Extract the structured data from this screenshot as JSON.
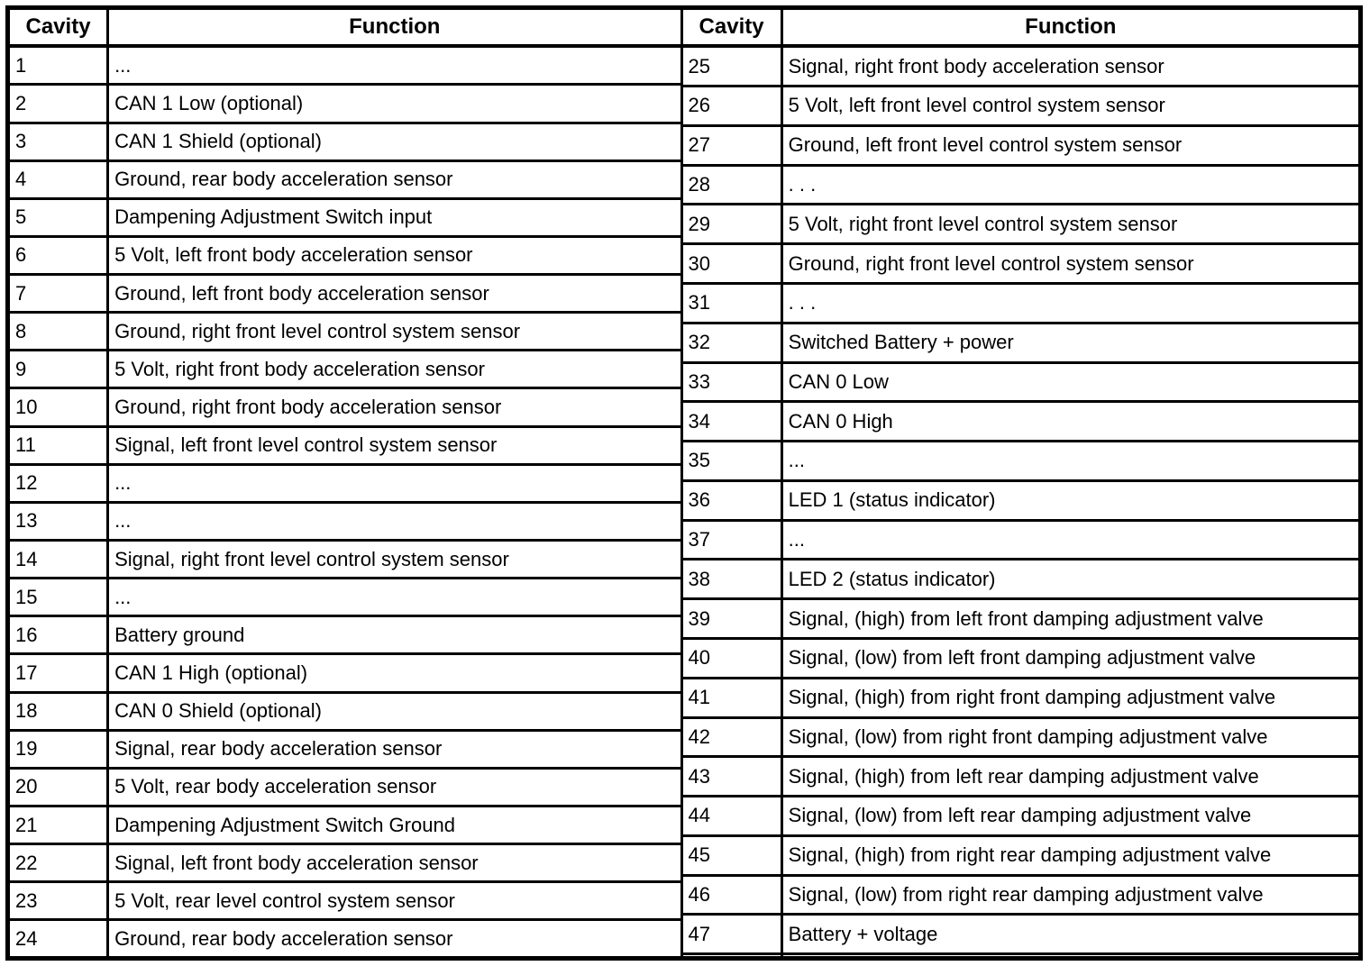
{
  "colors": {
    "border": "#000000",
    "background": "#ffffff",
    "text": "#000000"
  },
  "tables": [
    {
      "headers": {
        "cavity": "Cavity",
        "function": "Function"
      },
      "rows": [
        {
          "cavity": "1",
          "function": "..."
        },
        {
          "cavity": "2",
          "function": "CAN 1 Low (optional)"
        },
        {
          "cavity": "3",
          "function": "CAN 1 Shield (optional)"
        },
        {
          "cavity": "4",
          "function": "Ground, rear body acceleration sensor"
        },
        {
          "cavity": "5",
          "function": "Dampening Adjustment Switch input"
        },
        {
          "cavity": "6",
          "function": "5 Volt, left front body acceleration sensor"
        },
        {
          "cavity": "7",
          "function": "Ground, left front body acceleration sensor"
        },
        {
          "cavity": "8",
          "function": "Ground, right front level control system sensor"
        },
        {
          "cavity": "9",
          "function": "5 Volt, right front body acceleration sensor"
        },
        {
          "cavity": "10",
          "function": "Ground, right front body acceleration sensor"
        },
        {
          "cavity": "11",
          "function": "Signal, left front level control system sensor"
        },
        {
          "cavity": "12",
          "function": "..."
        },
        {
          "cavity": "13",
          "function": "..."
        },
        {
          "cavity": "14",
          "function": "Signal, right front level control system sensor"
        },
        {
          "cavity": "15",
          "function": "..."
        },
        {
          "cavity": "16",
          "function": "Battery ground"
        },
        {
          "cavity": "17",
          "function": "CAN 1 High (optional)"
        },
        {
          "cavity": "18",
          "function": "CAN 0 Shield (optional)"
        },
        {
          "cavity": "19",
          "function": "Signal, rear body acceleration sensor"
        },
        {
          "cavity": "20",
          "function": "5 Volt, rear body acceleration sensor"
        },
        {
          "cavity": "21",
          "function": "Dampening Adjustment Switch Ground"
        },
        {
          "cavity": "22",
          "function": "Signal, left front body acceleration sensor"
        },
        {
          "cavity": "23",
          "function": "5 Volt, rear level control system sensor"
        },
        {
          "cavity": "24",
          "function": "Ground, rear body acceleration sensor"
        }
      ]
    },
    {
      "headers": {
        "cavity": "Cavity",
        "function": "Function"
      },
      "rows": [
        {
          "cavity": "25",
          "function": "Signal, right front body acceleration sensor"
        },
        {
          "cavity": "26",
          "function": "5 Volt, left front level control system sensor"
        },
        {
          "cavity": "27",
          "function": "Ground, left front level control system sensor"
        },
        {
          "cavity": "28",
          "function": ". . ."
        },
        {
          "cavity": "29",
          "function": "5 Volt, right front level control system sensor"
        },
        {
          "cavity": "30",
          "function": "Ground, right front level control system sensor"
        },
        {
          "cavity": "31",
          "function": ". . ."
        },
        {
          "cavity": "32",
          "function": "Switched Battery + power"
        },
        {
          "cavity": "33",
          "function": "CAN 0 Low"
        },
        {
          "cavity": "34",
          "function": "CAN 0 High"
        },
        {
          "cavity": "35",
          "function": "..."
        },
        {
          "cavity": "36",
          "function": "LED 1 (status indicator)"
        },
        {
          "cavity": "37",
          "function": "..."
        },
        {
          "cavity": "38",
          "function": "LED 2 (status indicator)"
        },
        {
          "cavity": "39",
          "function": "Signal, (high) from left front damping adjustment valve"
        },
        {
          "cavity": "40",
          "function": "Signal, (low) from left front damping adjustment valve"
        },
        {
          "cavity": "41",
          "function": "Signal, (high) from right front damping adjustment valve"
        },
        {
          "cavity": "42",
          "function": "Signal, (low) from right front damping adjustment valve"
        },
        {
          "cavity": "43",
          "function": "Signal, (high) from left rear damping adjustment valve"
        },
        {
          "cavity": "44",
          "function": "Signal, (low) from left rear damping adjustment valve"
        },
        {
          "cavity": "45",
          "function": "Signal, (high) from right rear damping adjustment valve"
        },
        {
          "cavity": "46",
          "function": "Signal, (low) from right rear damping adjustment valve"
        },
        {
          "cavity": "47",
          "function": "Battery + voltage"
        },
        {
          "cavity": "",
          "function": ""
        }
      ]
    }
  ]
}
